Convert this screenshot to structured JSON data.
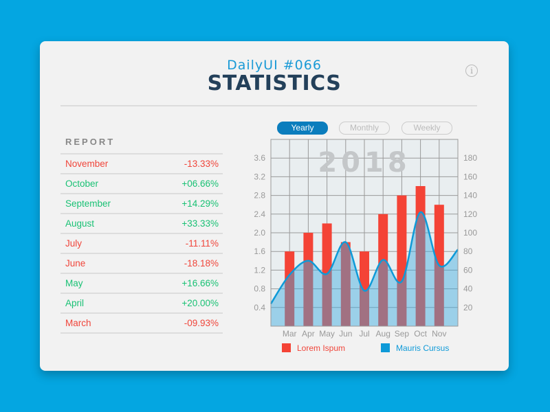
{
  "header": {
    "subtitle": "DailyUI #066",
    "title": "STATISTICS",
    "info_icon": "info-icon"
  },
  "report": {
    "heading": "REPORT",
    "rows": [
      {
        "month": "November",
        "change": "-13.33%"
      },
      {
        "month": "October",
        "change": "+06.66%"
      },
      {
        "month": "September",
        "change": "+14.29%"
      },
      {
        "month": "August",
        "change": "+33.33%"
      },
      {
        "month": "July",
        "change": "-11.11%"
      },
      {
        "month": "June",
        "change": "-18.18%"
      },
      {
        "month": "May",
        "change": "+16.66%"
      },
      {
        "month": "April",
        "change": "+20.00%"
      },
      {
        "month": "March",
        "change": "-09.93%"
      }
    ]
  },
  "tabs": [
    {
      "label": "Yearly",
      "active": true
    },
    {
      "label": "Monthly",
      "active": false
    },
    {
      "label": "Weekly",
      "active": false
    }
  ],
  "colors": {
    "background": "#04a6e1",
    "positive": "#19c174",
    "negative": "#f0453a",
    "bar": "#f44336",
    "line": "#0e9ad8",
    "area": "#9fd2ec"
  },
  "chart_data": {
    "type": "bar+line",
    "watermark": "2018",
    "categories": [
      "Mar",
      "Apr",
      "May",
      "Jun",
      "Jul",
      "Aug",
      "Sep",
      "Oct",
      "Nov"
    ],
    "left_axis": {
      "ylim": [
        0,
        4.0
      ],
      "ticks": [
        "0.4",
        "0.8",
        "1.2",
        "1.6",
        "2.0",
        "2.4",
        "2.8",
        "3.2",
        "3.6"
      ]
    },
    "right_axis": {
      "ylim": [
        0,
        200
      ],
      "ticks": [
        "20",
        "40",
        "60",
        "80",
        "100",
        "120",
        "140",
        "160",
        "180"
      ]
    },
    "grid": true,
    "legend_position": "bottom",
    "series": [
      {
        "name": "Lorem Ispum",
        "type": "bar",
        "axis": "left",
        "values": [
          1.6,
          2.0,
          2.2,
          1.8,
          1.6,
          2.4,
          2.8,
          3.0,
          2.6
        ]
      },
      {
        "name": "Mauris Cursus",
        "type": "area-line",
        "axis": "right",
        "values": [
          55,
          70,
          56,
          90,
          38,
          71,
          48,
          122,
          65
        ],
        "edge_start": 24,
        "edge_end": 82
      }
    ]
  }
}
